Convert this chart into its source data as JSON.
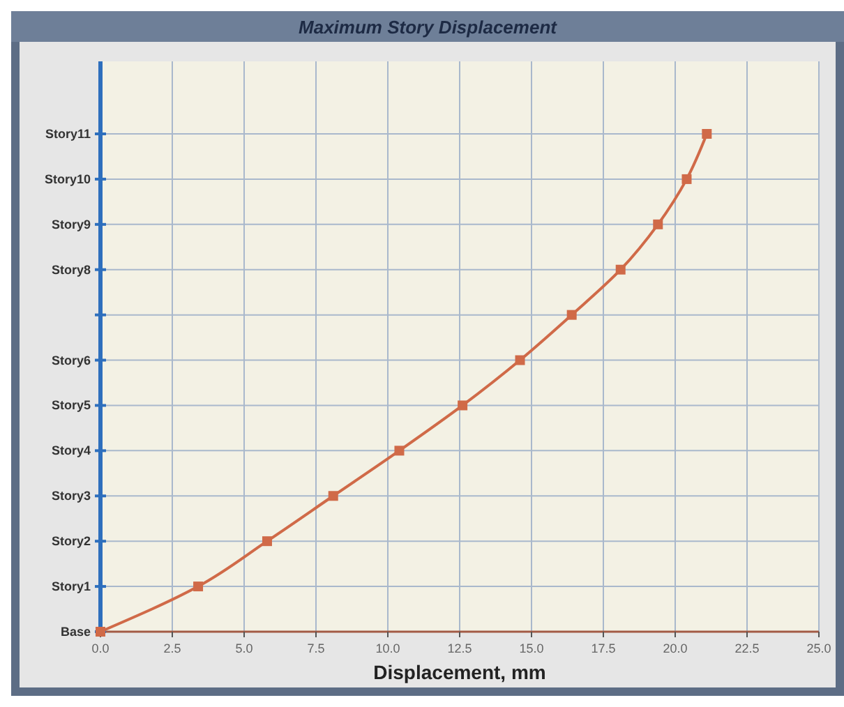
{
  "chart_data": {
    "type": "line",
    "orientation": "horizontal",
    "title": "Maximum Story Displacement",
    "xlabel": "Displacement, mm",
    "categories": [
      "Story11",
      "Story10",
      "Story9",
      "Story8",
      null,
      "Story6",
      "Story5",
      "Story4",
      "Story3",
      "Story2",
      "Story1",
      "Base"
    ],
    "series": [
      {
        "color": "#d06a48",
        "values": [
          21.1,
          20.4,
          19.4,
          18.1,
          16.4,
          14.6,
          12.6,
          10.4,
          8.1,
          5.8,
          3.4,
          0
        ]
      }
    ],
    "xlim": [
      0,
      25
    ],
    "xticks": [
      {
        "value": 0,
        "label": "0.0"
      },
      {
        "value": 2.5,
        "label": "2.5"
      },
      {
        "value": 5,
        "label": "5.0"
      },
      {
        "value": 7.5,
        "label": "7.5"
      },
      {
        "value": 10,
        "label": "10.0"
      },
      {
        "value": 12.5,
        "label": "12.5"
      },
      {
        "value": 15,
        "label": "15.0"
      },
      {
        "value": 17.5,
        "label": "17.5"
      },
      {
        "value": 20,
        "label": "20.0"
      },
      {
        "value": 22.5,
        "label": "22.5"
      },
      {
        "value": 25,
        "label": "25.0"
      }
    ],
    "grid": true,
    "marker": "square",
    "line_style": "solid"
  }
}
